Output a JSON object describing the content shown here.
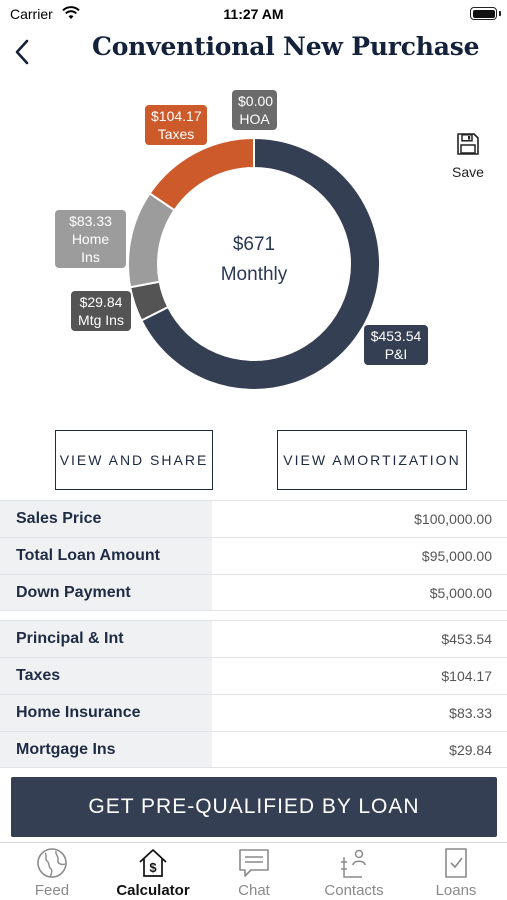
{
  "status_bar": {
    "carrier": "Carrier",
    "time": "11:27 AM"
  },
  "header": {
    "title": "Conventional New Purchase",
    "back_icon": "chevron-left-icon"
  },
  "chart_data": {
    "type": "pie",
    "center_value": "$671",
    "center_label": "Monthly",
    "series": [
      {
        "name": "P&I",
        "value": 453.54,
        "label": "$453.54",
        "color": "#343f54"
      },
      {
        "name": "Mtg Ins",
        "value": 29.84,
        "label": "$29.84",
        "color": "#545454"
      },
      {
        "name": "Home Ins",
        "value": 83.33,
        "label": "$83.33",
        "color": "#9c9c9c"
      },
      {
        "name": "Taxes",
        "value": 104.17,
        "label": "$104.17",
        "color": "#cc5a2b"
      },
      {
        "name": "HOA",
        "value": 0.0,
        "label": "$0.00",
        "color": "#6b6b6b"
      }
    ]
  },
  "save": {
    "label": "Save",
    "icon": "floppy-disk-icon"
  },
  "actions": {
    "view_share": "VIEW AND SHARE",
    "view_amortization": "VIEW AMORTIZATION"
  },
  "loan_table": [
    {
      "label": "Sales Price",
      "value": "$100,000.00"
    },
    {
      "label": "Total Loan Amount",
      "value": "$95,000.00"
    },
    {
      "label": "Down Payment",
      "value": "$5,000.00"
    }
  ],
  "payment_table": [
    {
      "label": "Principal & Int",
      "value": "$453.54"
    },
    {
      "label": "Taxes",
      "value": "$104.17"
    },
    {
      "label": "Home Insurance",
      "value": "$83.33"
    },
    {
      "label": "Mortgage Ins",
      "value": "$29.84"
    }
  ],
  "cta": {
    "label": "GET PRE-QUALIFIED BY LOAN"
  },
  "tab_bar": {
    "active": "Calculator",
    "tabs": [
      {
        "label": "Feed",
        "icon": "globe-icon"
      },
      {
        "label": "Calculator",
        "icon": "dollar-house-icon"
      },
      {
        "label": "Chat",
        "icon": "chat-bubble-icon"
      },
      {
        "label": "Contacts",
        "icon": "contacts-icon"
      },
      {
        "label": "Loans",
        "icon": "document-check-icon"
      }
    ]
  },
  "colors": {
    "navy": "#343f54",
    "orange": "#cc5a2b",
    "text": "#1d2a3f"
  }
}
